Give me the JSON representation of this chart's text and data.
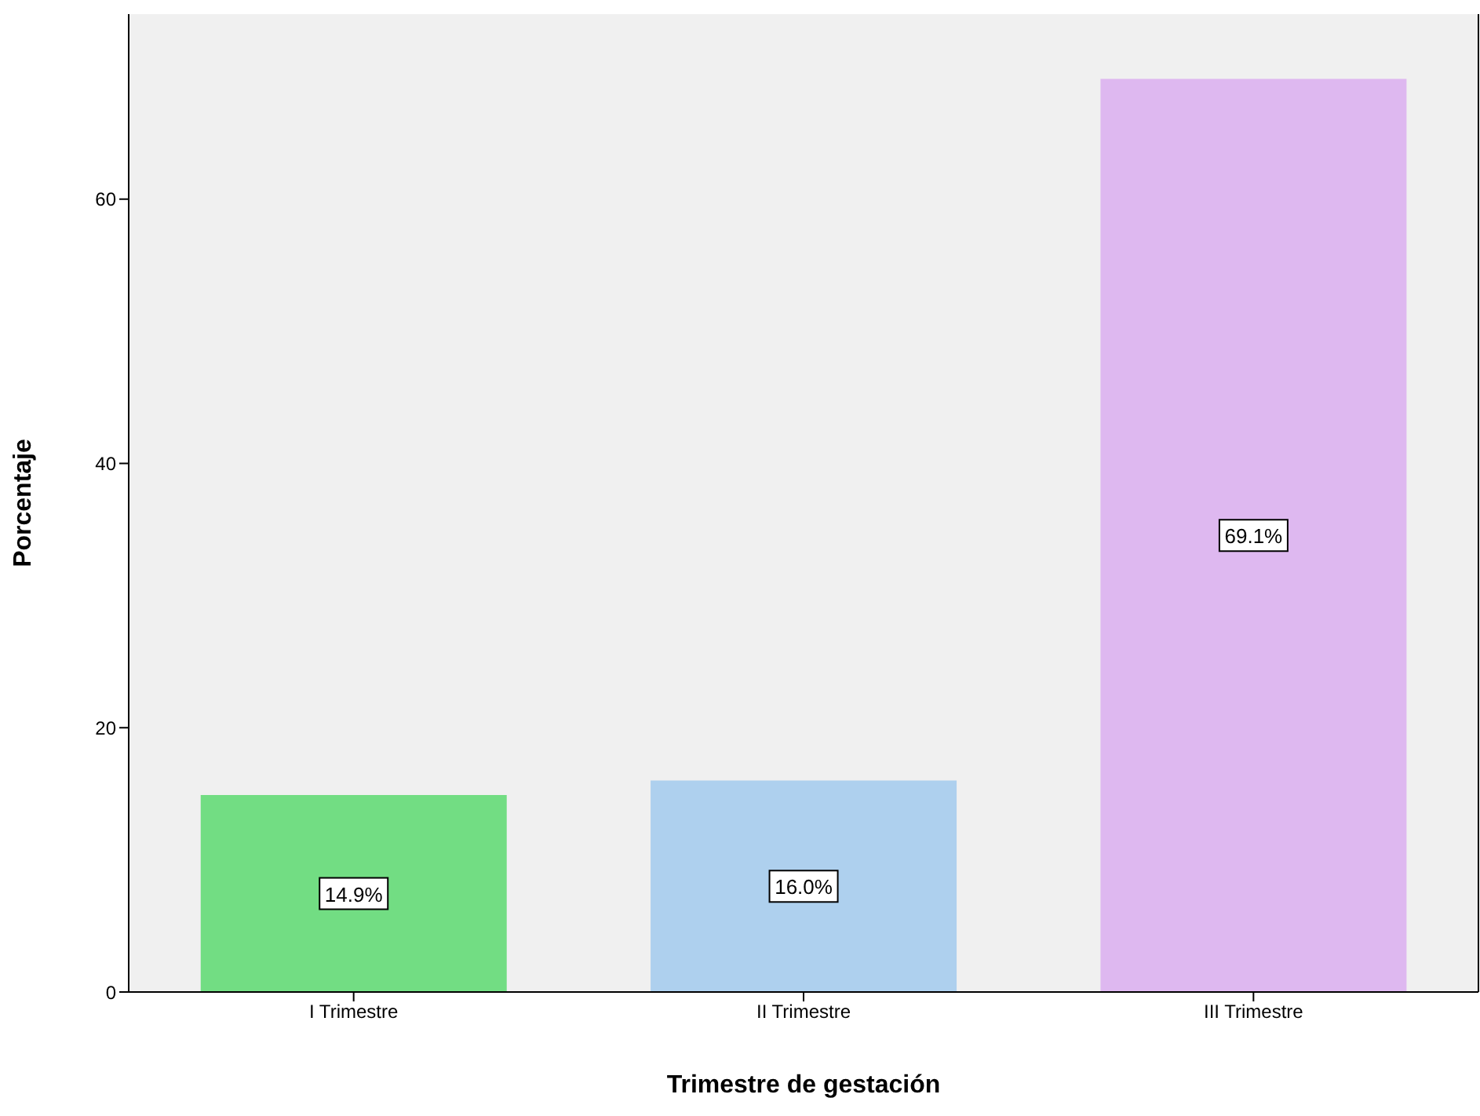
{
  "chart_data": {
    "type": "bar",
    "xlabel": "Trimestre de gestación",
    "ylabel": "Porcentaje",
    "categories": [
      "I Trimestre",
      "II Trimestre",
      "III Trimestre"
    ],
    "values": [
      14.9,
      16.0,
      69.1
    ],
    "colors": [
      "#72dd83",
      "#aed0ee",
      "#deb8f0"
    ],
    "value_labels": [
      "14.9%",
      "16.0%",
      "69.1%"
    ],
    "ylim": [
      0,
      74
    ],
    "yticks": [
      0,
      20,
      40,
      60
    ],
    "grid": false
  }
}
